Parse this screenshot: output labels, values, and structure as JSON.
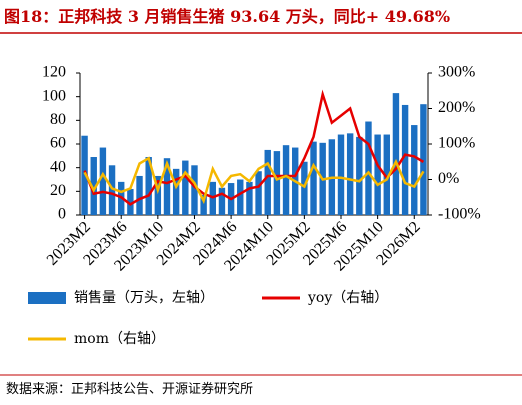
{
  "chart_data": {
    "type": "bar_line",
    "title": "图18：正邦科技 3 月销售生猪 93.64 万头，同比+ 49.68%",
    "source": "数据来源：正邦科技公告、开源证券研究所",
    "categories": [
      "2023M2",
      null,
      null,
      null,
      "2023M6",
      null,
      null,
      null,
      "2023M10",
      null,
      null,
      null,
      "2024M2",
      null,
      null,
      null,
      "2024M6",
      null,
      null,
      null,
      "2024M10",
      null,
      null,
      null,
      "2025M2",
      null,
      null,
      null,
      "2025M6",
      null,
      null,
      null,
      "2025M10",
      null,
      null,
      null,
      "2026M2",
      null
    ],
    "series": [
      {
        "name": "销售量（万头，左轴）",
        "color": "#1b6fc2",
        "type": "bar",
        "axis": "y",
        "values": [
          67,
          49,
          57,
          42,
          28,
          22,
          33,
          49,
          33,
          48,
          39,
          46,
          42,
          17,
          28,
          23,
          27,
          30,
          28,
          37,
          55,
          54,
          59,
          57,
          45,
          62,
          61,
          64,
          68,
          69,
          66,
          79,
          68,
          68,
          103,
          93,
          76,
          93.64
        ]
      },
      {
        "name": "yoy（右轴）",
        "color": "#e60000",
        "type": "line",
        "axis": "y2",
        "values": [
          25,
          -40,
          -35,
          -40,
          -50,
          -70,
          -55,
          -45,
          -5,
          -10,
          0,
          10,
          -20,
          -40,
          -50,
          -40,
          -55,
          -40,
          -25,
          -20,
          10,
          10,
          10,
          10,
          60,
          120,
          240,
          160,
          180,
          200,
          120,
          100,
          40,
          5,
          30,
          70,
          65,
          49.68
        ]
      },
      {
        "name": "mom（右轴）",
        "color": "#f5b800",
        "type": "line",
        "axis": "y2",
        "values": [
          20,
          -30,
          15,
          -25,
          -35,
          -25,
          45,
          60,
          -30,
          45,
          -20,
          20,
          -10,
          -60,
          30,
          -20,
          10,
          15,
          -5,
          30,
          45,
          0,
          10,
          -5,
          -20,
          40,
          0,
          5,
          5,
          0,
          -5,
          20,
          -15,
          0,
          50,
          -10,
          -20,
          23
        ]
      }
    ],
    "ylim": [
      0,
      120
    ],
    "yticks": [
      0,
      20,
      40,
      60,
      80,
      100,
      120
    ],
    "y2lim": [
      -100,
      300
    ],
    "y2ticks": [
      {
        "value": -100,
        "label": "-100%"
      },
      {
        "value": 0,
        "label": "0%"
      },
      {
        "value": 100,
        "label": "100%"
      },
      {
        "value": 200,
        "label": "200%"
      },
      {
        "value": 300,
        "label": "300%"
      }
    ]
  }
}
